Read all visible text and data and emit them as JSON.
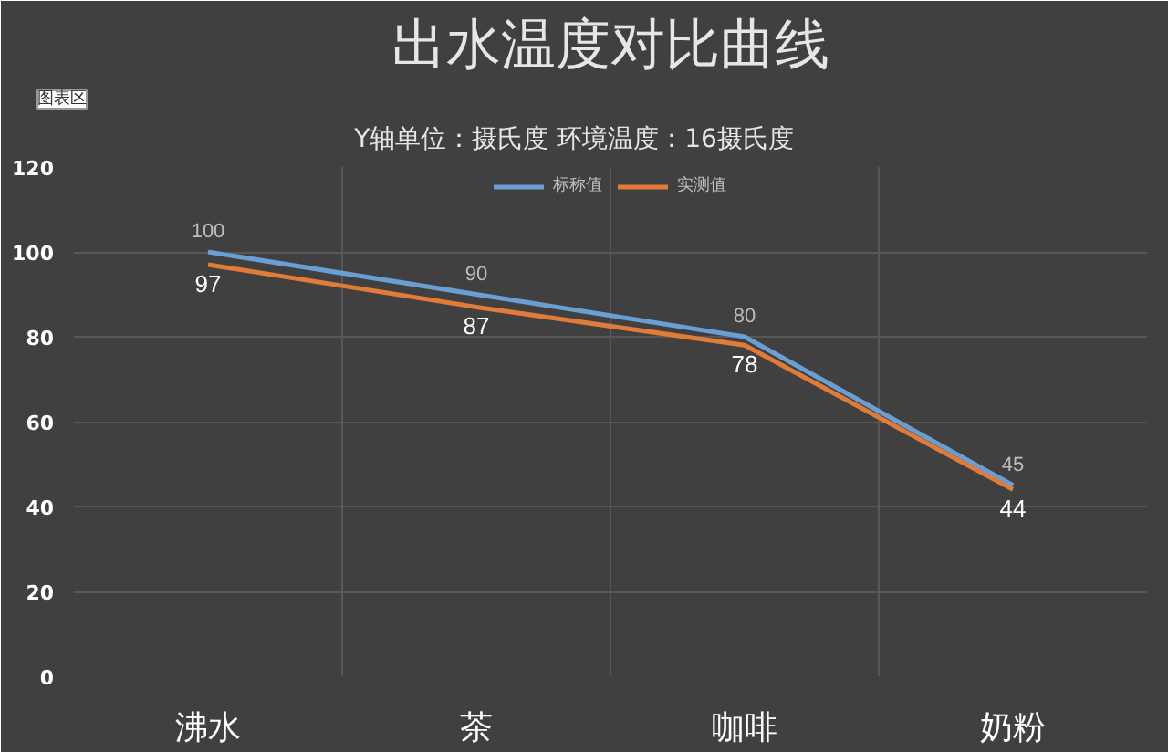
{
  "chart_data": {
    "type": "line",
    "title": "出水温度对比曲线",
    "subtitle": "Y轴单位：摄氏度          环境温度：16摄氏度",
    "annotations": [
      "图表区"
    ],
    "categories": [
      "沸水",
      "茶",
      "咖啡",
      "奶粉"
    ],
    "series": [
      {
        "name": "标称值",
        "color": "#6a9fd4",
        "values": [
          100,
          90,
          80,
          45
        ]
      },
      {
        "name": "实测值",
        "color": "#e07b39",
        "values": [
          97,
          87,
          78,
          44
        ]
      }
    ],
    "ylim": [
      0,
      120
    ],
    "yticks": [
      0,
      20,
      40,
      60,
      80,
      100,
      120
    ],
    "grid": true,
    "legend": "top",
    "marker": "none",
    "line_style": "solid",
    "data_labels": true
  }
}
